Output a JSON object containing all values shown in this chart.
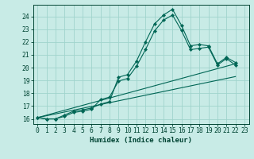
{
  "xlabel": "Humidex (Indice chaleur)",
  "background_color": "#c8ebe6",
  "grid_color": "#a0d4cc",
  "line_color": "#006655",
  "spine_color": "#004433",
  "xlim": [
    -0.5,
    23.5
  ],
  "ylim": [
    15.6,
    24.9
  ],
  "xticks": [
    0,
    1,
    2,
    3,
    4,
    5,
    6,
    7,
    8,
    9,
    10,
    11,
    12,
    13,
    14,
    15,
    16,
    17,
    18,
    19,
    20,
    21,
    22,
    23
  ],
  "yticks": [
    16,
    17,
    18,
    19,
    20,
    21,
    22,
    23,
    24
  ],
  "curve1_x": [
    0,
    1,
    2,
    3,
    4,
    5,
    6,
    7,
    8,
    9,
    10,
    11,
    12,
    13,
    14,
    15,
    16,
    17,
    18,
    19,
    20,
    21,
    22
  ],
  "curve1_y": [
    16.1,
    16.0,
    16.0,
    16.3,
    16.6,
    16.7,
    16.85,
    17.15,
    17.35,
    19.25,
    19.45,
    20.5,
    22.0,
    23.4,
    24.1,
    24.55,
    23.3,
    21.7,
    21.8,
    21.7,
    20.3,
    20.8,
    20.4
  ],
  "curve2_x": [
    0,
    1,
    2,
    3,
    4,
    5,
    6,
    7,
    8,
    9,
    10,
    11,
    12,
    13,
    14,
    15,
    16,
    17,
    18,
    19,
    20,
    21,
    22
  ],
  "curve2_y": [
    16.1,
    16.0,
    16.0,
    16.2,
    16.5,
    16.6,
    16.75,
    17.5,
    17.7,
    18.95,
    19.15,
    20.1,
    21.4,
    22.85,
    23.7,
    24.1,
    22.9,
    21.4,
    21.5,
    21.6,
    20.2,
    20.7,
    20.2
  ],
  "line1_x": [
    0,
    22
  ],
  "line1_y": [
    16.1,
    20.3
  ],
  "line2_x": [
    0,
    22
  ],
  "line2_y": [
    16.1,
    19.3
  ],
  "marker_size": 2.2,
  "xlabel_fontsize": 6.5,
  "tick_fontsize": 5.8
}
